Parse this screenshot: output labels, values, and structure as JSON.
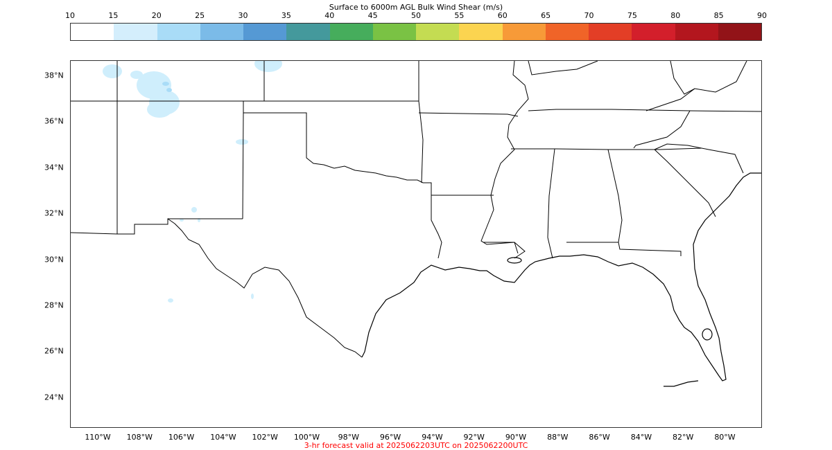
{
  "colorbar": {
    "title": "Surface to 6000m AGL Bulk Wind Shear (m/s)",
    "ticks": [
      "10",
      "15",
      "20",
      "25",
      "30",
      "35",
      "40",
      "45",
      "50",
      "55",
      "60",
      "65",
      "70",
      "75",
      "80",
      "85",
      "90"
    ],
    "colors": [
      "#ffffff",
      "#d4eefc",
      "#a9dcf7",
      "#7bbbe8",
      "#5599d4",
      "#44999c",
      "#46ad5c",
      "#7ac244",
      "#c4dc52",
      "#fbd450",
      "#f79a38",
      "#f06428",
      "#e33e26",
      "#d31f2b",
      "#b3161e",
      "#921318"
    ]
  },
  "map": {
    "lat_labels": [
      "38°N",
      "36°N",
      "34°N",
      "32°N",
      "30°N",
      "28°N",
      "26°N",
      "24°N"
    ],
    "lon_labels": [
      "110°W",
      "108°W",
      "106°W",
      "104°W",
      "102°W",
      "100°W",
      "98°W",
      "96°W",
      "94°W",
      "92°W",
      "90°W",
      "88°W",
      "86°W",
      "84°W",
      "82°W",
      "80°W"
    ],
    "shading_color": "#cfeefc",
    "shading_dark_color": "#a9dcf7",
    "line_color": "#000000"
  },
  "footer": {
    "text": "3-hr forecast valid at 2025062203UTC on 2025062200UTC",
    "color": "#ff0000"
  }
}
